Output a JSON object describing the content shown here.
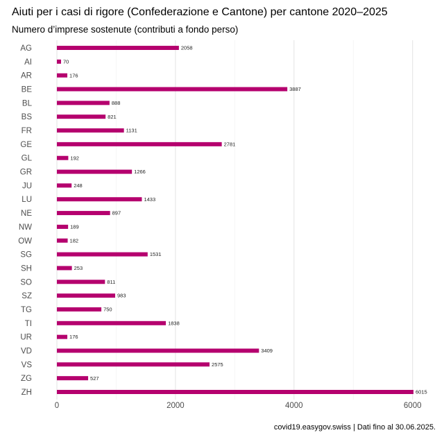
{
  "title": "Aiuti per i casi di rigore (Confederazione e Cantone) per cantone 2020–2025",
  "subtitle": "Numero d’imprese sostenute (contributi a fondo perso)",
  "caption": "covid19.easygov.swiss | Dati fino al 30.06.2025.",
  "chart_data": {
    "type": "bar",
    "orientation": "horizontal",
    "title": "Aiuti per i casi di rigore (Confederazione e Cantone) per cantone 2020–2025",
    "subtitle": "Numero d’imprese sostenute (contributi a fondo perso)",
    "categories": [
      "AG",
      "AI",
      "AR",
      "BE",
      "BL",
      "BS",
      "FR",
      "GE",
      "GL",
      "GR",
      "JU",
      "LU",
      "NE",
      "NW",
      "OW",
      "SG",
      "SH",
      "SO",
      "SZ",
      "TG",
      "TI",
      "UR",
      "VD",
      "VS",
      "ZG",
      "ZH"
    ],
    "values": [
      2058,
      70,
      176,
      3887,
      888,
      821,
      1131,
      2781,
      192,
      1266,
      248,
      1433,
      897,
      189,
      182,
      1531,
      253,
      811,
      983,
      750,
      1838,
      176,
      3409,
      2575,
      527,
      6015
    ],
    "x_ticks": [
      0,
      2000,
      4000,
      6000
    ],
    "xlim": [
      0,
      6015
    ],
    "bar_color": "#b5006e",
    "grid": true,
    "legend": "none"
  }
}
